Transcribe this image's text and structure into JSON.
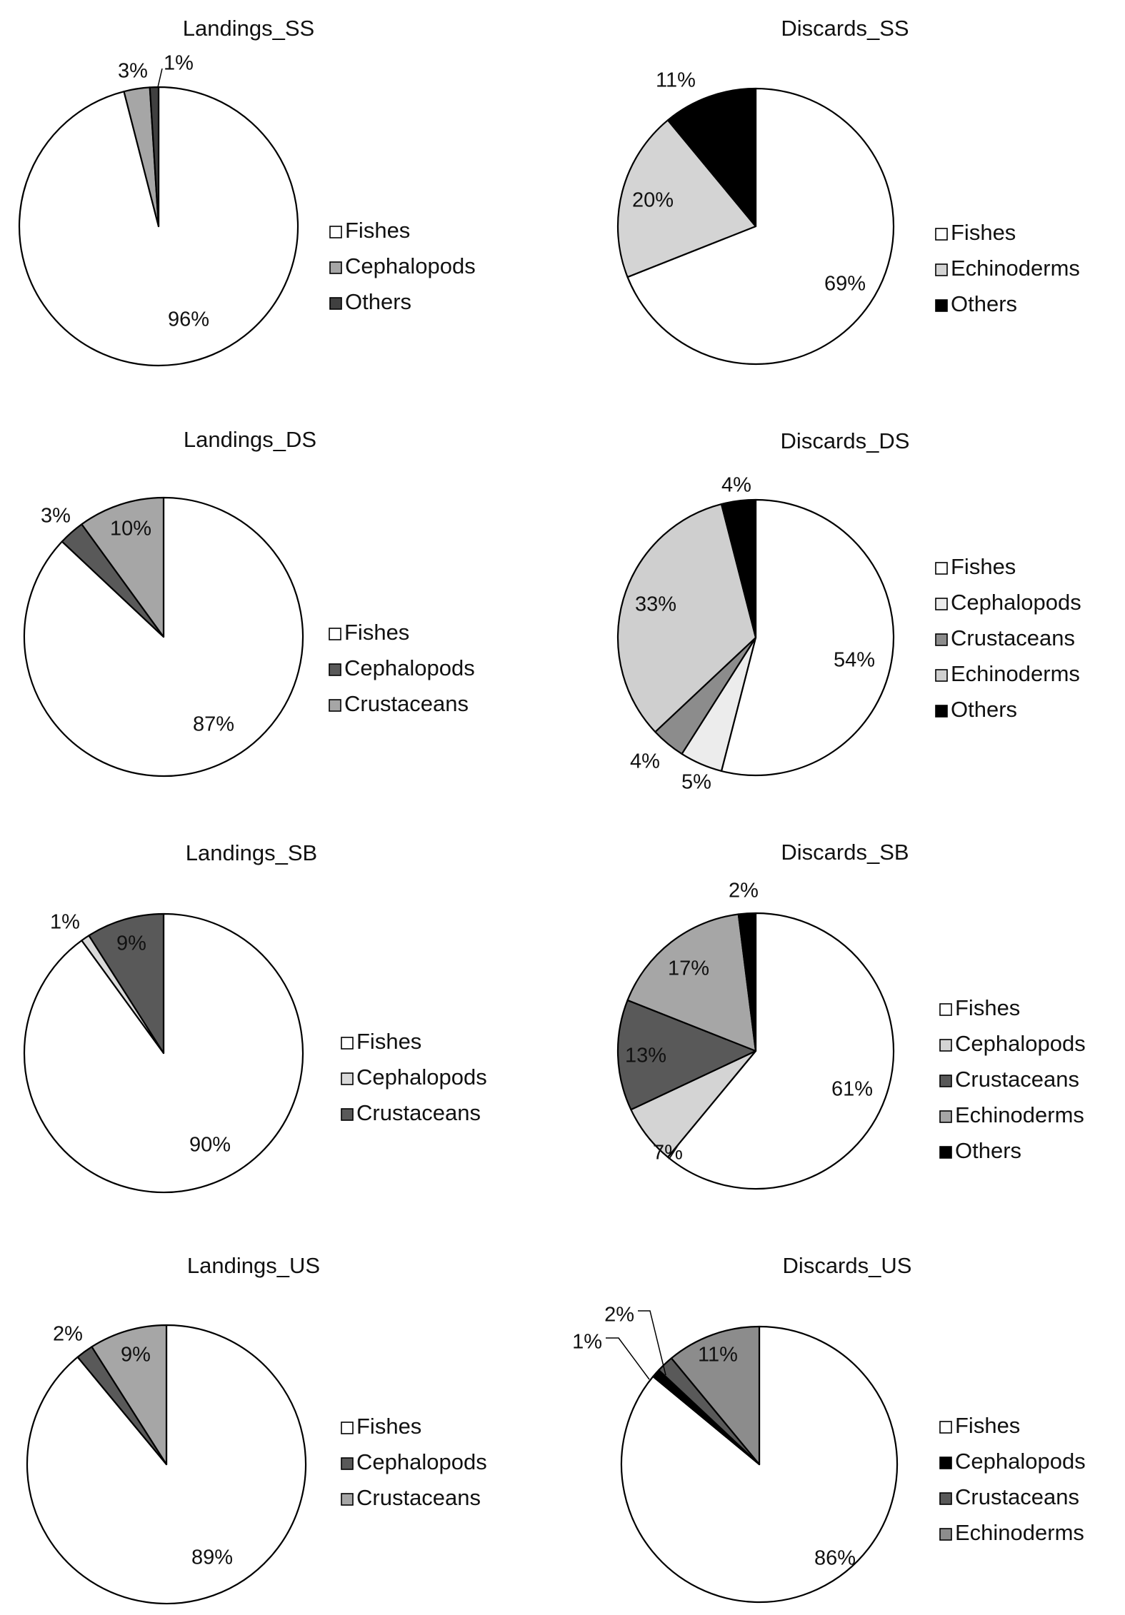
{
  "chart_data": [
    {
      "type": "pie",
      "title": "Landings_SS",
      "slices": [
        {
          "label": "Fishes",
          "value": 96,
          "color": "#ffffff"
        },
        {
          "label": "Cephalopods",
          "value": 3,
          "color": "#a6a6a6"
        },
        {
          "label": "Others",
          "value": 1,
          "color": "#404040"
        }
      ],
      "data_labels": [
        "96%",
        "3%",
        "1%"
      ],
      "legend": [
        "Fishes",
        "Cephalopods",
        "Others"
      ],
      "legend_placement": "right"
    },
    {
      "type": "pie",
      "title": "Discards_SS",
      "slices": [
        {
          "label": "Fishes",
          "value": 69,
          "color": "#ffffff"
        },
        {
          "label": "Echinoderms",
          "value": 20,
          "color": "#d4d4d4"
        },
        {
          "label": "Others",
          "value": 11,
          "color": "#000000"
        }
      ],
      "data_labels": [
        "69%",
        "20%",
        "11%"
      ],
      "legend": [
        "Fishes",
        "Echinoderms",
        "Others"
      ],
      "legend_placement": "right"
    },
    {
      "type": "pie",
      "title": "Landings_DS",
      "slices": [
        {
          "label": "Fishes",
          "value": 87,
          "color": "#ffffff"
        },
        {
          "label": "Cephalopods",
          "value": 3,
          "color": "#595959"
        },
        {
          "label": "Crustaceans",
          "value": 10,
          "color": "#a6a6a6"
        }
      ],
      "data_labels": [
        "87%",
        "3%",
        "10%"
      ],
      "legend": [
        "Fishes",
        "Cephalopods",
        "Crustaceans"
      ],
      "legend_placement": "right"
    },
    {
      "type": "pie",
      "title": "Discards_DS",
      "slices": [
        {
          "label": "Fishes",
          "value": 54,
          "color": "#ffffff"
        },
        {
          "label": "Cephalopods",
          "value": 5,
          "color": "#ececec"
        },
        {
          "label": "Crustaceans",
          "value": 4,
          "color": "#8c8c8c"
        },
        {
          "label": "Echinoderms",
          "value": 33,
          "color": "#cfcfcf"
        },
        {
          "label": "Others",
          "value": 4,
          "color": "#000000"
        }
      ],
      "data_labels": [
        "54%",
        "5%",
        "4%",
        "33%",
        "4%"
      ],
      "legend": [
        "Fishes",
        "Cephalopods",
        "Crustaceans",
        "Echinoderms",
        "Others"
      ],
      "legend_placement": "right"
    },
    {
      "type": "pie",
      "title": "Landings_SB",
      "slices": [
        {
          "label": "Fishes",
          "value": 90,
          "color": "#ffffff"
        },
        {
          "label": "Cephalopods",
          "value": 1,
          "color": "#d9d9d9"
        },
        {
          "label": "Crustaceans",
          "value": 9,
          "color": "#595959"
        }
      ],
      "data_labels": [
        "90%",
        "1%",
        "9%"
      ],
      "legend": [
        "Fishes",
        "Cephalopods",
        "Crustaceans"
      ],
      "legend_placement": "right"
    },
    {
      "type": "pie",
      "title": "Discards_SB",
      "slices": [
        {
          "label": "Fishes",
          "value": 61,
          "color": "#ffffff"
        },
        {
          "label": "Cephalopods",
          "value": 7,
          "color": "#d4d4d4"
        },
        {
          "label": "Crustaceans",
          "value": 13,
          "color": "#595959"
        },
        {
          "label": "Echinoderms",
          "value": 17,
          "color": "#a6a6a6"
        },
        {
          "label": "Others",
          "value": 2,
          "color": "#000000"
        }
      ],
      "data_labels": [
        "61%",
        "7%",
        "13%",
        "17%",
        "2%"
      ],
      "legend": [
        "Fishes",
        "Cephalopods",
        "Crustaceans",
        "Echinoderms",
        "Others"
      ],
      "legend_placement": "right"
    },
    {
      "type": "pie",
      "title": "Landings_US",
      "slices": [
        {
          "label": "Fishes",
          "value": 89,
          "color": "#ffffff"
        },
        {
          "label": "Cephalopods",
          "value": 2,
          "color": "#595959"
        },
        {
          "label": "Crustaceans",
          "value": 9,
          "color": "#a6a6a6"
        }
      ],
      "data_labels": [
        "89%",
        "2%",
        "9%"
      ],
      "legend": [
        "Fishes",
        "Cephalopods",
        "Crustaceans"
      ],
      "legend_placement": "right"
    },
    {
      "type": "pie",
      "title": "Discards_US",
      "slices": [
        {
          "label": "Fishes",
          "value": 86,
          "color": "#ffffff"
        },
        {
          "label": "Cephalopods",
          "value": 1,
          "color": "#000000"
        },
        {
          "label": "Crustaceans",
          "value": 2,
          "color": "#595959"
        },
        {
          "label": "Echinoderms",
          "value": 11,
          "color": "#8c8c8c"
        }
      ],
      "data_labels": [
        "86%",
        "1%",
        "2%",
        "11%"
      ],
      "legend": [
        "Fishes",
        "Cephalopods",
        "Crustaceans",
        "Echinoderms"
      ],
      "legend_placement": "right"
    }
  ]
}
